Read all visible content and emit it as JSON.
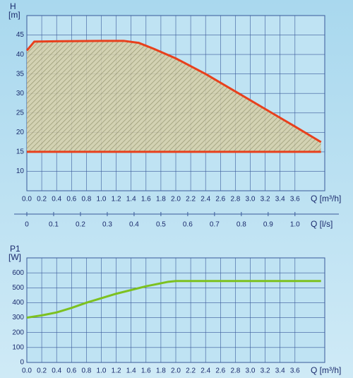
{
  "chart_data": [
    {
      "type": "line",
      "y_label": "H",
      "y_unit": "[m]",
      "x_label": "Q [m³/h]",
      "xlim": [
        0,
        4.0
      ],
      "xticks": [
        {
          "value": 0,
          "label": "0.0"
        },
        0.2,
        0.4,
        0.6,
        0.8,
        {
          "value": 1,
          "label": "1.0"
        },
        1.2,
        1.4,
        1.6,
        1.8,
        {
          "value": 2,
          "label": "2.0"
        },
        2.2,
        2.4,
        2.6,
        2.8,
        {
          "value": 3,
          "label": "3.0"
        },
        3.2,
        3.4,
        3.6
      ],
      "ylim": [
        5,
        50
      ],
      "yticks": [
        10,
        15,
        20,
        25,
        30,
        35,
        40,
        45
      ],
      "grid": true,
      "fill_between": true,
      "series": [
        {
          "color": "#e8401c",
          "x": [
            0,
            0.1,
            0.4,
            1.0,
            1.3,
            1.5,
            1.7,
            2.0,
            2.4,
            2.8,
            3.2,
            3.6,
            3.95
          ],
          "values": [
            41,
            43.3,
            43.4,
            43.5,
            43.5,
            43,
            41.5,
            39,
            35,
            30.5,
            26,
            21.5,
            17.5
          ]
        },
        {
          "color": "#e8401c",
          "x": [
            0,
            3.95
          ],
          "values": [
            15,
            15
          ]
        }
      ],
      "x2_label": "Q [l/s]",
      "x2lim": [
        0,
        1.1111
      ],
      "x2ticks": [
        0,
        0.1,
        0.2,
        0.3,
        0.4,
        0.5,
        0.6,
        0.7,
        0.8,
        0.9,
        {
          "value": 1,
          "label": "1.0"
        }
      ]
    },
    {
      "type": "line",
      "y_label": "P1",
      "y_unit": "[W]",
      "x_label": "Q [m³/h]",
      "xlim": [
        0,
        4.0
      ],
      "xticks": [
        {
          "value": 0,
          "label": "0.0"
        },
        0.2,
        0.4,
        0.6,
        0.8,
        {
          "value": 1,
          "label": "1.0"
        },
        1.2,
        1.4,
        1.6,
        1.8,
        {
          "value": 2,
          "label": "2.0"
        },
        2.2,
        2.4,
        2.6,
        2.8,
        {
          "value": 3,
          "label": "3.0"
        },
        3.2,
        3.4,
        3.6
      ],
      "ylim": [
        0,
        700
      ],
      "yticks": [
        0,
        100,
        200,
        300,
        400,
        500,
        600
      ],
      "grid": true,
      "series": [
        {
          "color": "#7dc11f",
          "x": [
            0,
            0.2,
            0.4,
            0.6,
            0.8,
            1.2,
            1.6,
            1.9,
            2.0,
            3.95
          ],
          "values": [
            300,
            315,
            335,
            365,
            400,
            460,
            510,
            540,
            545,
            545
          ]
        }
      ]
    }
  ]
}
